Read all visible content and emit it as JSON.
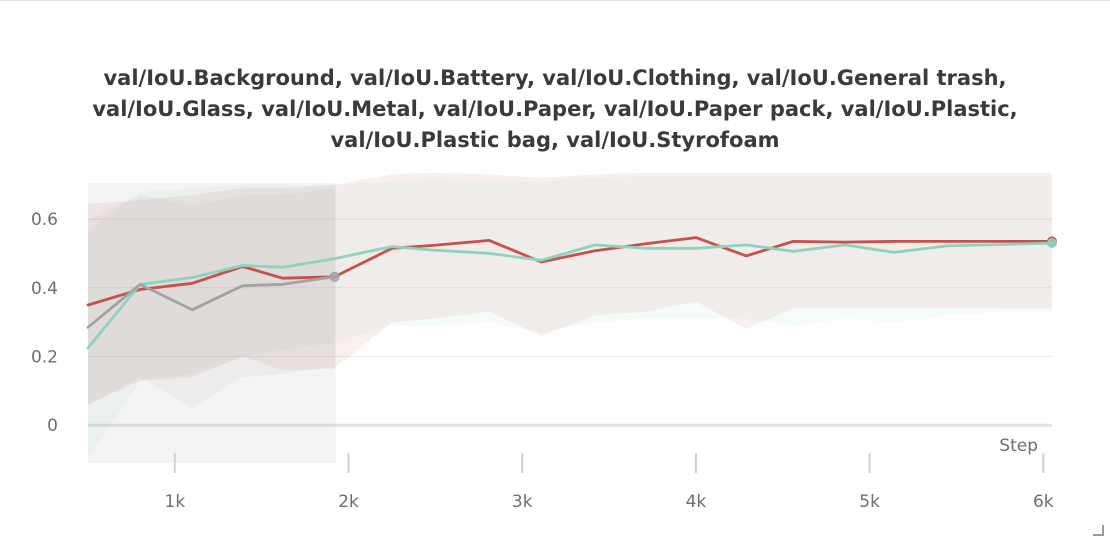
{
  "chart_data": {
    "type": "line",
    "title_lines": [
      "val/IoU.Background, val/IoU.Battery, val/IoU.Clothing, val/IoU.General trash,",
      "val/IoU.Glass, val/IoU.Metal, val/IoU.Paper, val/IoU.Paper pack, val/IoU.Plastic,",
      "val/IoU.Plastic bag, val/IoU.Styrofoam"
    ],
    "xlabel": "Step",
    "ylabel": "",
    "x_ticks": [
      1000,
      2000,
      3000,
      4000,
      5000,
      6000
    ],
    "x_tick_labels": [
      "1k",
      "2k",
      "3k",
      "4k",
      "5k",
      "6k"
    ],
    "y_ticks": [
      0,
      0.2,
      0.4,
      0.6
    ],
    "y_tick_labels": [
      "0",
      "0.2",
      "0.4",
      "0.6"
    ],
    "xlim": [
      500,
      6050
    ],
    "ylim": [
      -0.11,
      0.74
    ],
    "grid": true,
    "legend": "none",
    "series": [
      {
        "color": "#c8504b",
        "x": [
          500,
          800,
          1100,
          1390,
          1620,
          1920,
          2250,
          2480,
          2810,
          3110,
          3420,
          3710,
          4000,
          4290,
          4560,
          4860,
          5140,
          5450,
          5760,
          6050
        ],
        "values": [
          0.35,
          0.395,
          0.413,
          0.462,
          0.428,
          0.432,
          0.515,
          0.523,
          0.538,
          0.475,
          0.508,
          0.528,
          0.546,
          0.493,
          0.535,
          0.533,
          0.535,
          0.535,
          0.535,
          0.535
        ],
        "band_upper": [
          0.645,
          0.655,
          0.67,
          0.69,
          0.69,
          0.7,
          0.73,
          0.735,
          0.73,
          0.72,
          0.73,
          0.735,
          0.735,
          0.735,
          0.735,
          0.735,
          0.735,
          0.735,
          0.735,
          0.735
        ],
        "band_lower": [
          0.06,
          0.13,
          0.14,
          0.2,
          0.16,
          0.165,
          0.3,
          0.31,
          0.33,
          0.26,
          0.32,
          0.33,
          0.36,
          0.28,
          0.34,
          0.34,
          0.34,
          0.34,
          0.34,
          0.34
        ]
      },
      {
        "color": "#8fd2bf",
        "x": [
          500,
          800,
          1100,
          1390,
          1620,
          1920,
          2250,
          2480,
          2810,
          3110,
          3420,
          3710,
          4000,
          4290,
          4560,
          4860,
          5140,
          5450,
          5760,
          6050
        ],
        "values": [
          0.225,
          0.41,
          0.43,
          0.465,
          0.46,
          0.485,
          0.52,
          0.51,
          0.5,
          0.48,
          0.525,
          0.515,
          0.515,
          0.525,
          0.506,
          0.525,
          0.503,
          0.522,
          0.526,
          0.53
        ],
        "band_upper": [
          0.56,
          0.68,
          0.69,
          0.7,
          0.7,
          0.7,
          0.71,
          0.715,
          0.71,
          0.71,
          0.72,
          0.725,
          0.725,
          0.725,
          0.725,
          0.725,
          0.725,
          0.725,
          0.725,
          0.725
        ],
        "band_lower": [
          -0.1,
          0.13,
          0.15,
          0.2,
          0.22,
          0.24,
          0.29,
          0.29,
          0.3,
          0.27,
          0.3,
          0.31,
          0.31,
          0.31,
          0.29,
          0.31,
          0.3,
          0.32,
          0.33,
          0.33
        ]
      },
      {
        "color": "#a2a2a6",
        "x": [
          500,
          800,
          1100,
          1390,
          1620,
          1920
        ],
        "values": [
          0.285,
          0.41,
          0.336,
          0.406,
          0.41,
          0.432
        ],
        "band_upper": [
          0.6,
          0.67,
          0.64,
          0.67,
          0.67,
          0.69
        ],
        "band_lower": [
          0.06,
          0.14,
          0.05,
          0.14,
          0.15,
          0.17
        ]
      }
    ]
  }
}
